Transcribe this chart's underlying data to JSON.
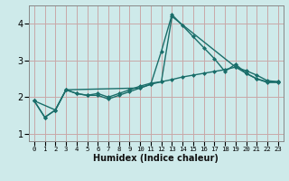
{
  "xlabel": "Humidex (Indice chaleur)",
  "xlim": [
    -0.5,
    23.5
  ],
  "ylim": [
    0.8,
    4.5
  ],
  "bg_color": "#ceeaea",
  "grid_color": "#c8a8a8",
  "line_color": "#1a6e6a",
  "xticks": [
    0,
    1,
    2,
    3,
    4,
    5,
    6,
    7,
    8,
    9,
    10,
    11,
    12,
    13,
    14,
    15,
    16,
    17,
    18,
    19,
    20,
    21,
    22,
    23
  ],
  "yticks": [
    1,
    2,
    3,
    4
  ],
  "lines": [
    {
      "x": [
        0,
        1,
        2,
        3,
        4,
        5,
        6,
        7,
        8,
        9,
        10,
        11,
        12,
        13,
        14,
        15,
        16,
        17,
        18,
        19,
        20,
        21,
        22,
        23
      ],
      "y": [
        1.9,
        1.45,
        1.65,
        2.2,
        2.1,
        2.05,
        2.05,
        1.95,
        2.05,
        2.15,
        2.25,
        2.35,
        3.25,
        4.25,
        3.95,
        3.65,
        3.35,
        3.05,
        2.7,
        2.9,
        2.65,
        2.5,
        2.4,
        2.4
      ]
    },
    {
      "x": [
        0,
        1,
        2,
        3,
        4,
        5,
        6,
        7,
        8,
        9,
        10,
        11,
        12,
        13,
        14,
        15,
        16,
        17,
        18,
        19,
        20,
        21,
        22,
        23
      ],
      "y": [
        1.9,
        1.45,
        1.65,
        2.2,
        2.1,
        2.05,
        2.1,
        2.0,
        2.1,
        2.2,
        2.3,
        2.38,
        2.42,
        2.48,
        2.55,
        2.6,
        2.65,
        2.7,
        2.75,
        2.82,
        2.72,
        2.6,
        2.45,
        2.42
      ]
    },
    {
      "x": [
        0,
        2,
        3,
        10,
        11,
        12,
        13,
        19,
        20,
        21,
        22,
        23
      ],
      "y": [
        1.9,
        1.65,
        2.2,
        2.25,
        2.35,
        2.42,
        4.2,
        2.82,
        2.65,
        2.5,
        2.42,
        2.42
      ]
    }
  ],
  "marker": "D",
  "marker_size": 2.0,
  "lw": 1.0
}
